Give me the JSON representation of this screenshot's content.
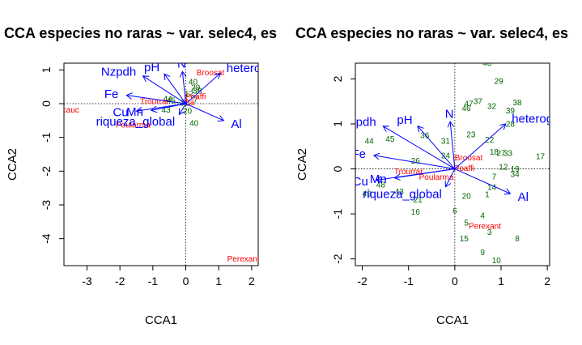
{
  "chart_data": [
    {
      "type": "scatter",
      "title": "CCA especies no raras ~ var. selec4, es",
      "xlabel": "CCA1",
      "ylabel": "CCA2",
      "xlim": [
        -3.7,
        2.2
      ],
      "ylim": [
        -4.8,
        1.2
      ],
      "xticks": [
        -3,
        -2,
        -1,
        0,
        1,
        2
      ],
      "yticks": [
        -4,
        -3,
        -2,
        -1,
        0,
        1
      ],
      "reference_lines": {
        "x": 0,
        "y": 0
      },
      "colors": {
        "sites": "#006400",
        "species": "#ff0000",
        "env": "#0000ff"
      },
      "env_vectors": [
        {
          "label": "heterogeneidad_ambiental_P",
          "x": 1.05,
          "y": 0.9
        },
        {
          "label": "N",
          "x": -0.1,
          "y": 0.95
        },
        {
          "label": "Nzpdh",
          "x": -1.3,
          "y": 0.82
        },
        {
          "label": "pH",
          "x": -0.65,
          "y": 0.88
        },
        {
          "label": "Fe",
          "x": -1.8,
          "y": 0.25
        },
        {
          "label": "Cu",
          "x": -1.5,
          "y": -0.22
        },
        {
          "label": "Mn",
          "x": -1.05,
          "y": -0.2
        },
        {
          "label": "riqueza_global",
          "x": -0.2,
          "y": -0.32
        },
        {
          "label": "Al",
          "x": 1.15,
          "y": -0.5
        }
      ],
      "species_labels": [
        {
          "label": "Broosat",
          "x": 0.75,
          "y": 0.92
        },
        {
          "label": "Ipcauc",
          "x": -3.6,
          "y": -0.18
        },
        {
          "label": "Poularma",
          "x": -1.6,
          "y": -0.62
        },
        {
          "label": "Trourrar",
          "x": -0.95,
          "y": 0.07
        },
        {
          "label": "Poaffi",
          "x": 0.3,
          "y": 0.22
        },
        {
          "label": "ifta",
          "x": 0.1,
          "y": 0.05
        },
        {
          "label": "Perexant",
          "x": 1.75,
          "y": -4.6
        }
      ],
      "site_labels": [
        {
          "label": "40",
          "x": 0.22,
          "y": 0.65
        },
        {
          "label": "29",
          "x": 0.3,
          "y": 0.48
        },
        {
          "label": "38",
          "x": 0.35,
          "y": 0.38
        },
        {
          "label": "44",
          "x": -0.55,
          "y": 0.15
        },
        {
          "label": "45",
          "x": -0.45,
          "y": 0.1
        },
        {
          "label": "43",
          "x": -0.6,
          "y": -0.18
        },
        {
          "label": "20",
          "x": 0.05,
          "y": -0.22
        },
        {
          "label": "40",
          "x": 0.25,
          "y": -0.58
        },
        {
          "label": "7",
          "x": 0.3,
          "y": 0.12
        },
        {
          "label": "12",
          "x": 0.1,
          "y": 0.3
        },
        {
          "label": "31",
          "x": -0.05,
          "y": 0.02
        }
      ]
    },
    {
      "type": "scatter",
      "title": "CCA especies no raras ~ var. selec4, es",
      "xlabel": "CCA1",
      "ylabel": "CCA2",
      "xlim": [
        -2.15,
        2.05
      ],
      "ylim": [
        -2.15,
        2.35
      ],
      "xticks": [
        -2,
        -1,
        0,
        1,
        2
      ],
      "yticks": [
        -2,
        -1,
        0,
        1,
        2
      ],
      "reference_lines": {
        "x": 0,
        "y": 0
      },
      "colors": {
        "sites": "#006400",
        "species": "#ff0000",
        "env": "#0000ff"
      },
      "env_vectors": [
        {
          "label": "heterogeneidad_ambiental_P",
          "x": 1.1,
          "y": 1.0
        },
        {
          "label": "N",
          "x": -0.1,
          "y": 1.05
        },
        {
          "label": "Nzpdh",
          "x": -1.55,
          "y": 0.95
        },
        {
          "label": "pH",
          "x": -0.8,
          "y": 0.95
        },
        {
          "label": "Fe",
          "x": -1.75,
          "y": 0.3
        },
        {
          "label": "Cu",
          "x": -1.7,
          "y": -0.25
        },
        {
          "label": "Mn",
          "x": -1.3,
          "y": -0.2
        },
        {
          "label": "riqueza_global",
          "x": -0.2,
          "y": -0.4
        },
        {
          "label": "Al",
          "x": 1.2,
          "y": -0.55
        }
      ],
      "species_labels": [
        {
          "label": "Broosat",
          "x": 0.3,
          "y": 0.25
        },
        {
          "label": "Trourrar",
          "x": -1.0,
          "y": -0.05
        },
        {
          "label": "Poularma",
          "x": -0.4,
          "y": -0.18
        },
        {
          "label": "Poaffi",
          "x": 0.2,
          "y": 0.02
        },
        {
          "label": "Perexant",
          "x": 0.65,
          "y": -1.27
        }
      ],
      "site_labels": [
        {
          "label": "40",
          "x": 0.7,
          "y": 2.35
        },
        {
          "label": "29",
          "x": 0.95,
          "y": 1.95
        },
        {
          "label": "37",
          "x": 0.5,
          "y": 1.5
        },
        {
          "label": "47",
          "x": 0.3,
          "y": 1.45
        },
        {
          "label": "32",
          "x": 0.8,
          "y": 1.4
        },
        {
          "label": "38",
          "x": 1.35,
          "y": 1.48
        },
        {
          "label": "39",
          "x": 1.2,
          "y": 1.3
        },
        {
          "label": "46",
          "x": 0.25,
          "y": 1.35
        },
        {
          "label": "28",
          "x": 1.2,
          "y": 1.0
        },
        {
          "label": "36",
          "x": -0.65,
          "y": 0.75
        },
        {
          "label": "31",
          "x": -0.2,
          "y": 0.62
        },
        {
          "label": "23",
          "x": 0.35,
          "y": 0.77
        },
        {
          "label": "22",
          "x": 0.75,
          "y": 0.65
        },
        {
          "label": "44",
          "x": -1.85,
          "y": 0.62
        },
        {
          "label": "45",
          "x": -1.4,
          "y": 0.67
        },
        {
          "label": "24",
          "x": -0.2,
          "y": 0.3
        },
        {
          "label": "26",
          "x": -0.85,
          "y": 0.18
        },
        {
          "label": "18",
          "x": 0.85,
          "y": 0.38
        },
        {
          "label": "27",
          "x": 1.0,
          "y": 0.35
        },
        {
          "label": "33",
          "x": 1.15,
          "y": 0.35
        },
        {
          "label": "17",
          "x": 1.85,
          "y": 0.28
        },
        {
          "label": "12",
          "x": 1.05,
          "y": 0.05
        },
        {
          "label": "19",
          "x": 1.3,
          "y": 0.0
        },
        {
          "label": "34",
          "x": 1.3,
          "y": -0.12
        },
        {
          "label": "7",
          "x": 0.85,
          "y": -0.17
        },
        {
          "label": "14",
          "x": 0.8,
          "y": -0.4
        },
        {
          "label": "1",
          "x": 0.7,
          "y": -0.57
        },
        {
          "label": "20",
          "x": 0.25,
          "y": -0.6
        },
        {
          "label": "48",
          "x": -1.6,
          "y": -0.35
        },
        {
          "label": "49",
          "x": -1.9,
          "y": -0.55
        },
        {
          "label": "43",
          "x": -1.2,
          "y": -0.5
        },
        {
          "label": "21",
          "x": -0.8,
          "y": -0.68
        },
        {
          "label": "16",
          "x": -0.85,
          "y": -0.95
        },
        {
          "label": "6",
          "x": 0.0,
          "y": -0.93
        },
        {
          "label": "4",
          "x": 0.6,
          "y": -1.03
        },
        {
          "label": "5",
          "x": 0.25,
          "y": -1.2
        },
        {
          "label": "3",
          "x": 0.75,
          "y": -1.4
        },
        {
          "label": "15",
          "x": 0.2,
          "y": -1.55
        },
        {
          "label": "8",
          "x": 1.35,
          "y": -1.55
        },
        {
          "label": "9",
          "x": 0.6,
          "y": -1.85
        },
        {
          "label": "10",
          "x": 0.9,
          "y": -2.03
        }
      ]
    }
  ]
}
